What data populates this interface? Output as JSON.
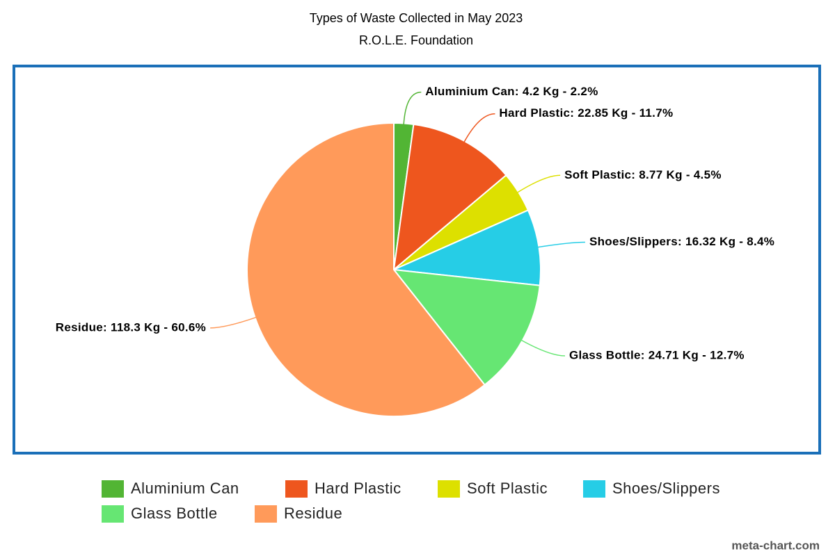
{
  "chart_data": {
    "type": "pie",
    "title": "Types of Waste Collected in May 2023",
    "subtitle": "R.O.L.E. Foundation",
    "categories": [
      "Aluminium Can",
      "Hard Plastic",
      "Soft Plastic",
      "Shoes/Slippers",
      "Glass Bottle",
      "Residue"
    ],
    "values": [
      4.2,
      22.85,
      8.77,
      16.32,
      24.71,
      118.3
    ],
    "value_labels": [
      "Aluminium Can: 4.2 Kg - 2.2%",
      "Hard Plastic: 22.85 Kg - 11.7%",
      "Soft Plastic: 8.77 Kg - 4.5%",
      "Shoes/Slippers: 16.32 Kg - 8.4%",
      "Glass Bottle: 24.71 Kg - 12.7%",
      "Residue: 118.3 Kg - 60.6%"
    ],
    "colors": [
      "#52b534",
      "#ee561e",
      "#dde000",
      "#26cde6",
      "#66e673",
      "#ff9a5a"
    ],
    "credit": "meta-chart.com"
  }
}
